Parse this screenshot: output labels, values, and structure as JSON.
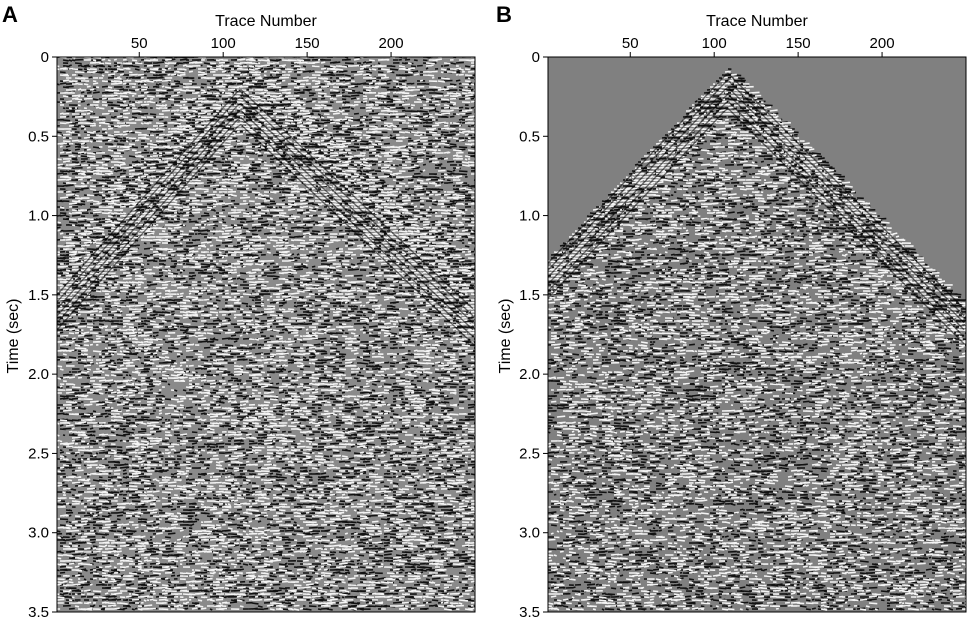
{
  "figure": {
    "panels": [
      {
        "letter": "A",
        "description_key": "raw"
      },
      {
        "letter": "B",
        "description_key": "processed"
      }
    ]
  },
  "chart_data": [
    {
      "type": "heatmap",
      "panel_label": "A",
      "xlabel": "Trace Number",
      "ylabel": "Time (sec)",
      "xlim": [
        1,
        250
      ],
      "ylim": [
        0,
        3.5
      ],
      "y_inverted": true,
      "x_axis_position": "top",
      "x_ticks": [
        50,
        100,
        150,
        200
      ],
      "x_tick_labels": [
        "50",
        "100",
        "150",
        "200"
      ],
      "y_ticks": [
        0,
        0.5,
        1.0,
        1.5,
        2.0,
        2.5,
        3.0,
        3.5
      ],
      "y_tick_labels": [
        "0",
        "0.5",
        "1.0",
        "1.5",
        "2.0",
        "2.5",
        "3.0",
        "3.5"
      ],
      "colormap": "grayscale",
      "background_noise": true,
      "first_arrival": {
        "apex_trace": 110,
        "apex_time": 0.2,
        "left_edge_time": 1.5,
        "right_edge_time": 1.6
      }
    },
    {
      "type": "heatmap",
      "panel_label": "B",
      "xlabel": "Trace Number",
      "ylabel": "Time (sec)",
      "xlim": [
        1,
        250
      ],
      "ylim": [
        0,
        3.5
      ],
      "y_inverted": true,
      "x_axis_position": "top",
      "x_ticks": [
        50,
        100,
        150,
        200
      ],
      "x_tick_labels": [
        "50",
        "100",
        "150",
        "200"
      ],
      "y_ticks": [
        0,
        0.5,
        1.0,
        1.5,
        2.0,
        2.5,
        3.0,
        3.5
      ],
      "y_tick_labels": [
        "0",
        "0.5",
        "1.0",
        "1.5",
        "2.0",
        "2.5",
        "3.0",
        "3.5"
      ],
      "colormap": "grayscale",
      "background_noise": false,
      "first_arrival": {
        "apex_trace": 108,
        "apex_time": 0.1,
        "left_edge_time": 1.3,
        "right_edge_time": 1.6
      }
    }
  ],
  "colors": {
    "bg": "#ffffff",
    "mute": "#808080",
    "ink": "#000000"
  }
}
